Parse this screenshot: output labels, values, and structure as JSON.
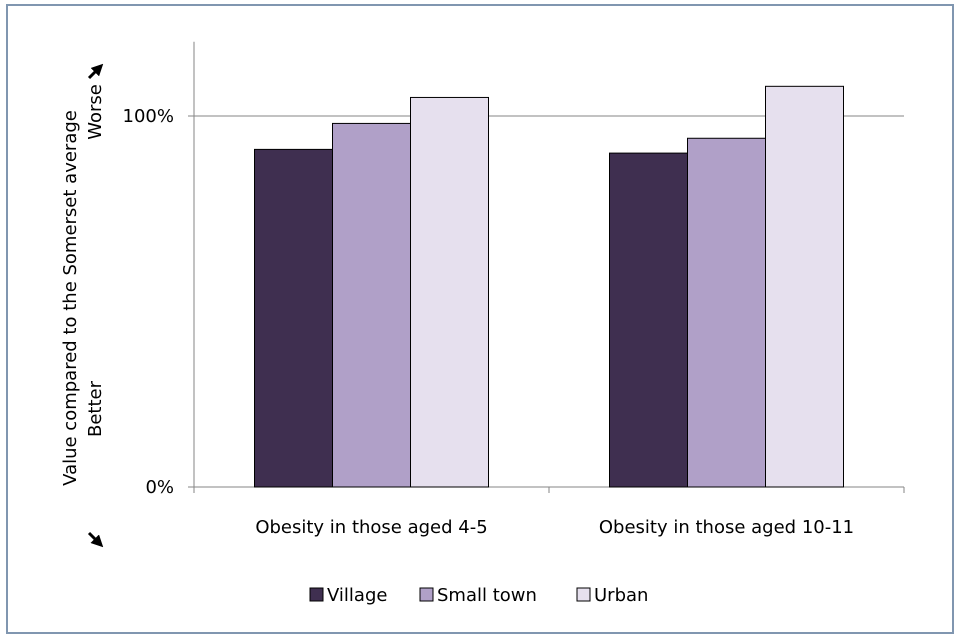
{
  "chart_data": {
    "type": "bar",
    "title": "",
    "xlabel": "",
    "ylabel": "Value compared to the Somerset average",
    "ylabel_worse": "Worse",
    "ylabel_better": "Better",
    "ylim": [
      0,
      120
    ],
    "yticks": [
      0,
      100
    ],
    "ytick_labels": [
      "0%",
      "100%"
    ],
    "grid": true,
    "legend_position": "bottom",
    "categories": [
      "Obesity in those aged 4-5",
      "Obesity in those aged 10-11"
    ],
    "series": [
      {
        "name": "Village",
        "color": "#3f2f50",
        "values": [
          91,
          90
        ]
      },
      {
        "name": "Small town",
        "color": "#b0a0c8",
        "values": [
          98,
          94
        ]
      },
      {
        "name": "Urban",
        "color": "#e6e0ee",
        "values": [
          105,
          108
        ]
      }
    ]
  }
}
